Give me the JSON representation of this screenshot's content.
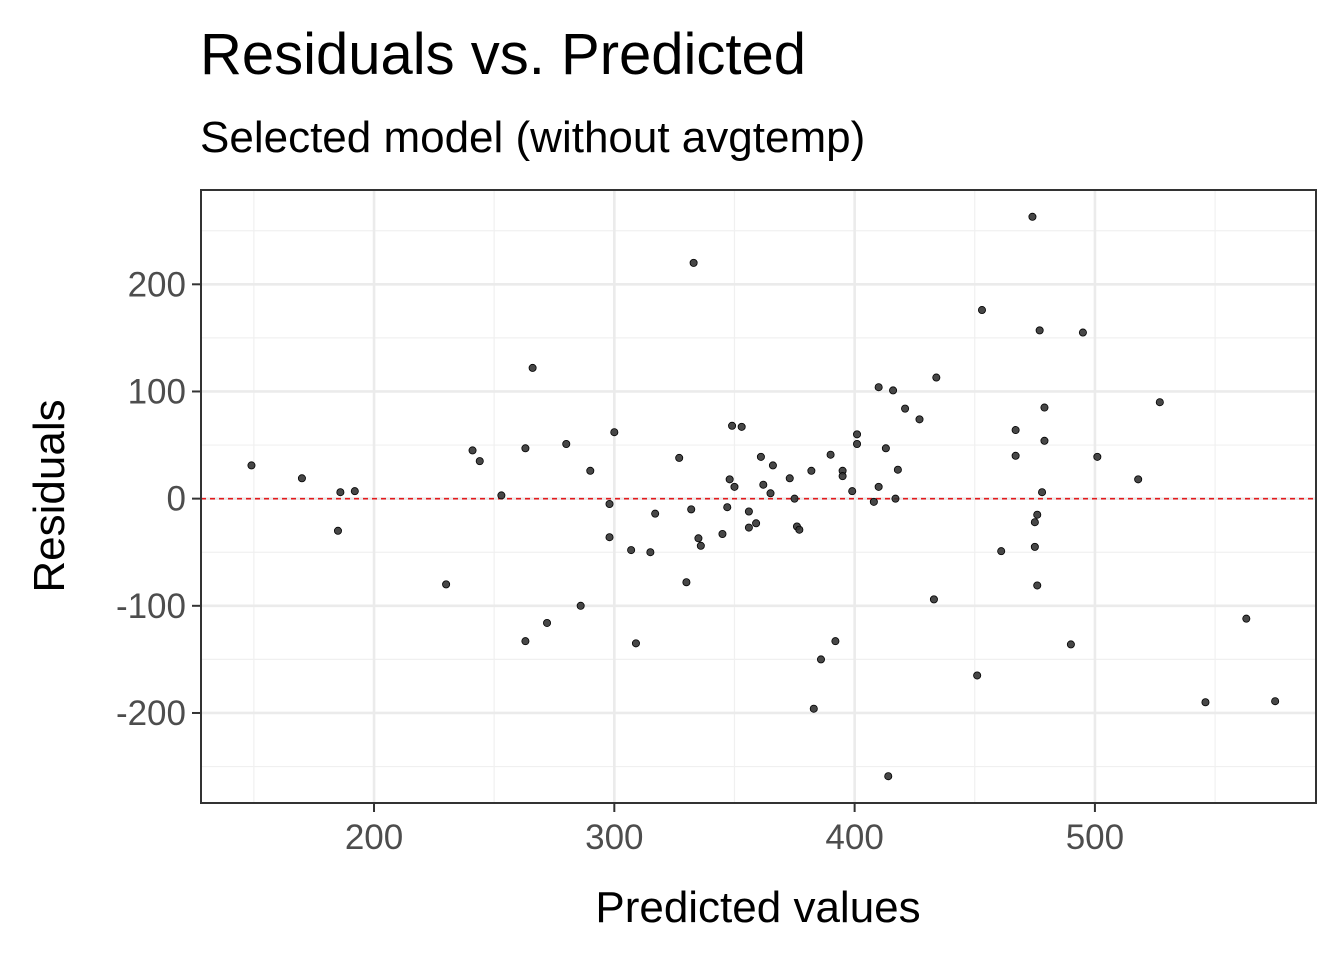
{
  "chart_data": {
    "type": "scatter",
    "title": "Residuals vs. Predicted",
    "subtitle": "Selected model (without avgtemp)",
    "xlabel": "Predicted values",
    "ylabel": "Residuals",
    "xlim": [
      128,
      592
    ],
    "ylim": [
      -284,
      288
    ],
    "x_ticks": [
      200,
      300,
      400,
      500
    ],
    "y_ticks": [
      -200,
      -100,
      0,
      100,
      200
    ],
    "x_tick_labels": [
      "200",
      "300",
      "400",
      "500"
    ],
    "y_tick_labels": [
      "-200",
      "-100",
      "0",
      "100",
      "200"
    ],
    "grid": true,
    "reference_line": {
      "y": 0,
      "color": "#e41a1c",
      "style": "dashed"
    },
    "point_color": "#333333",
    "points": [
      {
        "x": 149,
        "y": 31
      },
      {
        "x": 170,
        "y": 19
      },
      {
        "x": 185,
        "y": -30
      },
      {
        "x": 186,
        "y": 6
      },
      {
        "x": 192,
        "y": 7
      },
      {
        "x": 230,
        "y": -80
      },
      {
        "x": 241,
        "y": 45
      },
      {
        "x": 244,
        "y": 35
      },
      {
        "x": 253,
        "y": 3
      },
      {
        "x": 263,
        "y": -133
      },
      {
        "x": 263,
        "y": 47
      },
      {
        "x": 266,
        "y": 122
      },
      {
        "x": 272,
        "y": -116
      },
      {
        "x": 280,
        "y": 51
      },
      {
        "x": 286,
        "y": -100
      },
      {
        "x": 290,
        "y": 26
      },
      {
        "x": 298,
        "y": -5
      },
      {
        "x": 298,
        "y": -36
      },
      {
        "x": 300,
        "y": 62
      },
      {
        "x": 307,
        "y": -48
      },
      {
        "x": 309,
        "y": -135
      },
      {
        "x": 315,
        "y": -50
      },
      {
        "x": 317,
        "y": -14
      },
      {
        "x": 327,
        "y": 38
      },
      {
        "x": 330,
        "y": -78
      },
      {
        "x": 332,
        "y": -10
      },
      {
        "x": 333,
        "y": 220
      },
      {
        "x": 335,
        "y": -37
      },
      {
        "x": 336,
        "y": -44
      },
      {
        "x": 345,
        "y": -33
      },
      {
        "x": 347,
        "y": -8
      },
      {
        "x": 348,
        "y": 18
      },
      {
        "x": 349,
        "y": 68
      },
      {
        "x": 350,
        "y": 11
      },
      {
        "x": 353,
        "y": 67
      },
      {
        "x": 356,
        "y": -12
      },
      {
        "x": 356,
        "y": -27
      },
      {
        "x": 359,
        "y": -23
      },
      {
        "x": 361,
        "y": 39
      },
      {
        "x": 362,
        "y": 13
      },
      {
        "x": 365,
        "y": 5
      },
      {
        "x": 366,
        "y": 31
      },
      {
        "x": 373,
        "y": 19
      },
      {
        "x": 375,
        "y": 0
      },
      {
        "x": 376,
        "y": -26
      },
      {
        "x": 377,
        "y": -29
      },
      {
        "x": 382,
        "y": 26
      },
      {
        "x": 383,
        "y": -196
      },
      {
        "x": 386,
        "y": -150
      },
      {
        "x": 390,
        "y": 41
      },
      {
        "x": 392,
        "y": -133
      },
      {
        "x": 395,
        "y": 26
      },
      {
        "x": 395,
        "y": 21
      },
      {
        "x": 399,
        "y": 7
      },
      {
        "x": 401,
        "y": 51
      },
      {
        "x": 401,
        "y": 60
      },
      {
        "x": 408,
        "y": -3
      },
      {
        "x": 410,
        "y": 104
      },
      {
        "x": 410,
        "y": 11
      },
      {
        "x": 413,
        "y": 47
      },
      {
        "x": 414,
        "y": -259
      },
      {
        "x": 416,
        "y": 101
      },
      {
        "x": 417,
        "y": 0
      },
      {
        "x": 418,
        "y": 27
      },
      {
        "x": 421,
        "y": 84
      },
      {
        "x": 427,
        "y": 74
      },
      {
        "x": 433,
        "y": -94
      },
      {
        "x": 434,
        "y": 113
      },
      {
        "x": 451,
        "y": -165
      },
      {
        "x": 453,
        "y": 176
      },
      {
        "x": 461,
        "y": -49
      },
      {
        "x": 467,
        "y": 64
      },
      {
        "x": 467,
        "y": 40
      },
      {
        "x": 474,
        "y": 263
      },
      {
        "x": 475,
        "y": -45
      },
      {
        "x": 475,
        "y": -22
      },
      {
        "x": 476,
        "y": -15
      },
      {
        "x": 476,
        "y": -81
      },
      {
        "x": 477,
        "y": 157
      },
      {
        "x": 478,
        "y": 6
      },
      {
        "x": 479,
        "y": 85
      },
      {
        "x": 479,
        "y": 54
      },
      {
        "x": 490,
        "y": -136
      },
      {
        "x": 495,
        "y": 155
      },
      {
        "x": 501,
        "y": 39
      },
      {
        "x": 518,
        "y": 18
      },
      {
        "x": 527,
        "y": 90
      },
      {
        "x": 546,
        "y": -190
      },
      {
        "x": 563,
        "y": -112
      },
      {
        "x": 575,
        "y": -189
      }
    ]
  }
}
